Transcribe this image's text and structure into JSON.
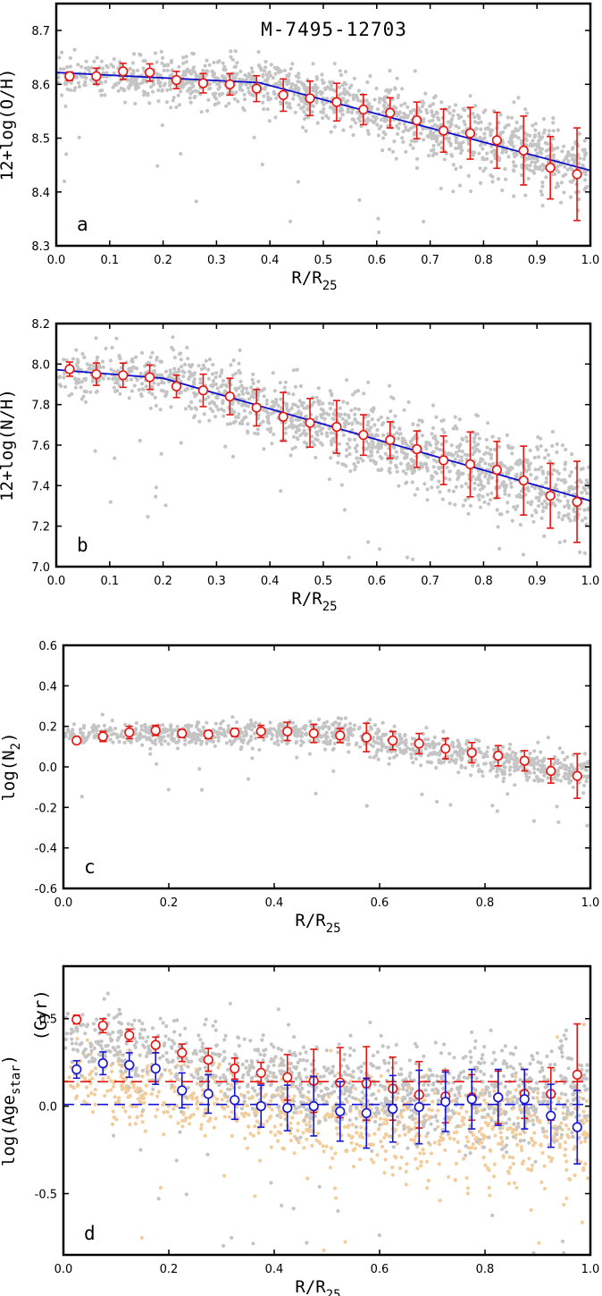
{
  "figure_title": "M-7495-12703",
  "colors": {
    "scatter": "#c4c4c4",
    "scatter_young": "#f2cc9a",
    "binned_red": "#e8140f",
    "fit_blue": "#1010cc",
    "binned_blue": "#1414d6",
    "frame": "#000000"
  },
  "chart_data": [
    {
      "id": "a",
      "type": "scatter",
      "panel_label": "a",
      "title": "M-7495-12703",
      "xlabel": "R/R25",
      "xlabel_main": "R/R",
      "xlabel_sub": "25",
      "ylabel": "12+log(O/H)",
      "xlim": [
        0.0,
        1.0
      ],
      "ylim": [
        8.3,
        8.75
      ],
      "xticks": [
        "0.0",
        "0.1",
        "0.2",
        "0.3",
        "0.4",
        "0.5",
        "0.6",
        "0.7",
        "0.8",
        "0.9",
        "1.0"
      ],
      "yticks": [
        "8.3",
        "8.4",
        "8.5",
        "8.6",
        "8.7"
      ],
      "grid": false,
      "scatter_cloud": {
        "trend_x": [
          0.0,
          0.4,
          1.0
        ],
        "trend_y": [
          8.62,
          8.6,
          8.45
        ],
        "spread": 0.035,
        "n": 1400
      },
      "fit_line": {
        "x": [
          0.0,
          0.38,
          1.0
        ],
        "y": [
          8.622,
          8.603,
          8.44
        ]
      },
      "binned": [
        {
          "x": 0.025,
          "y": 8.615,
          "err": 0.008
        },
        {
          "x": 0.075,
          "y": 8.615,
          "err": 0.015
        },
        {
          "x": 0.125,
          "y": 8.624,
          "err": 0.015
        },
        {
          "x": 0.175,
          "y": 8.622,
          "err": 0.016
        },
        {
          "x": 0.225,
          "y": 8.608,
          "err": 0.016
        },
        {
          "x": 0.275,
          "y": 8.602,
          "err": 0.018
        },
        {
          "x": 0.325,
          "y": 8.6,
          "err": 0.02
        },
        {
          "x": 0.375,
          "y": 8.592,
          "err": 0.024
        },
        {
          "x": 0.425,
          "y": 8.58,
          "err": 0.03
        },
        {
          "x": 0.475,
          "y": 8.574,
          "err": 0.032
        },
        {
          "x": 0.525,
          "y": 8.567,
          "err": 0.035
        },
        {
          "x": 0.575,
          "y": 8.553,
          "err": 0.028
        },
        {
          "x": 0.625,
          "y": 8.547,
          "err": 0.028
        },
        {
          "x": 0.675,
          "y": 8.533,
          "err": 0.034
        },
        {
          "x": 0.725,
          "y": 8.514,
          "err": 0.04
        },
        {
          "x": 0.775,
          "y": 8.509,
          "err": 0.048
        },
        {
          "x": 0.825,
          "y": 8.496,
          "err": 0.052
        },
        {
          "x": 0.875,
          "y": 8.477,
          "err": 0.064
        },
        {
          "x": 0.925,
          "y": 8.445,
          "err": 0.058
        },
        {
          "x": 0.975,
          "y": 8.433,
          "err": 0.086
        }
      ]
    },
    {
      "id": "b",
      "type": "scatter",
      "panel_label": "b",
      "xlabel": "R/R25",
      "xlabel_main": "R/R",
      "xlabel_sub": "25",
      "ylabel": "12+log(N/H)",
      "xlim": [
        0.0,
        1.0
      ],
      "ylim": [
        7.0,
        8.2
      ],
      "xticks": [
        "0.0",
        "0.1",
        "0.2",
        "0.3",
        "0.4",
        "0.5",
        "0.6",
        "0.7",
        "0.8",
        "0.9",
        "1.0"
      ],
      "yticks": [
        "7.0",
        "7.2",
        "7.4",
        "7.6",
        "7.8",
        "8.0",
        "8.2"
      ],
      "grid": false,
      "scatter_cloud": {
        "trend_x": [
          0.0,
          0.2,
          1.0
        ],
        "trend_y": [
          7.97,
          7.93,
          7.33
        ],
        "spread": 0.12,
        "n": 1400
      },
      "fit_line": {
        "x": [
          0.0,
          0.2,
          1.0
        ],
        "y": [
          7.972,
          7.93,
          7.325
        ]
      },
      "binned": [
        {
          "x": 0.025,
          "y": 7.975,
          "err": 0.035
        },
        {
          "x": 0.075,
          "y": 7.95,
          "err": 0.055
        },
        {
          "x": 0.125,
          "y": 7.945,
          "err": 0.06
        },
        {
          "x": 0.175,
          "y": 7.935,
          "err": 0.06
        },
        {
          "x": 0.225,
          "y": 7.89,
          "err": 0.055
        },
        {
          "x": 0.275,
          "y": 7.87,
          "err": 0.08
        },
        {
          "x": 0.325,
          "y": 7.84,
          "err": 0.09
        },
        {
          "x": 0.375,
          "y": 7.785,
          "err": 0.09
        },
        {
          "x": 0.425,
          "y": 7.74,
          "err": 0.12
        },
        {
          "x": 0.475,
          "y": 7.71,
          "err": 0.12
        },
        {
          "x": 0.525,
          "y": 7.69,
          "err": 0.13
        },
        {
          "x": 0.575,
          "y": 7.65,
          "err": 0.1
        },
        {
          "x": 0.625,
          "y": 7.625,
          "err": 0.09
        },
        {
          "x": 0.675,
          "y": 7.58,
          "err": 0.09
        },
        {
          "x": 0.725,
          "y": 7.525,
          "err": 0.12
        },
        {
          "x": 0.775,
          "y": 7.505,
          "err": 0.16
        },
        {
          "x": 0.825,
          "y": 7.478,
          "err": 0.14
        },
        {
          "x": 0.875,
          "y": 7.425,
          "err": 0.17
        },
        {
          "x": 0.925,
          "y": 7.35,
          "err": 0.16
        },
        {
          "x": 0.975,
          "y": 7.32,
          "err": 0.2
        }
      ]
    },
    {
      "id": "c",
      "type": "scatter",
      "panel_label": "c",
      "xlabel": "R/R25",
      "xlabel_main": "R/R",
      "xlabel_sub": "25",
      "ylabel": "log(N2)",
      "ylabel_main": "log(N",
      "ylabel_sub": "2",
      "ylabel_close": ")",
      "xlim": [
        0.0,
        1.0
      ],
      "ylim": [
        -0.6,
        0.6
      ],
      "xticks": [
        "0.0",
        "0.2",
        "0.4",
        "0.6",
        "0.8",
        "1.0"
      ],
      "yticks": [
        "-0.6",
        "-0.4",
        "-0.2",
        "0.0",
        "0.2",
        "0.4",
        "0.6"
      ],
      "grid": false,
      "scatter_cloud": {
        "trend_x": [
          0.1,
          0.5,
          1.0
        ],
        "trend_y": [
          0.16,
          0.17,
          -0.05
        ],
        "spread": 0.05,
        "n": 1100
      },
      "binned": [
        {
          "x": 0.025,
          "y": 0.13,
          "err": 0.015
        },
        {
          "x": 0.075,
          "y": 0.15,
          "err": 0.025
        },
        {
          "x": 0.125,
          "y": 0.17,
          "err": 0.03
        },
        {
          "x": 0.175,
          "y": 0.18,
          "err": 0.025
        },
        {
          "x": 0.225,
          "y": 0.165,
          "err": 0.02
        },
        {
          "x": 0.275,
          "y": 0.16,
          "err": 0.02
        },
        {
          "x": 0.325,
          "y": 0.17,
          "err": 0.02
        },
        {
          "x": 0.375,
          "y": 0.175,
          "err": 0.03
        },
        {
          "x": 0.425,
          "y": 0.175,
          "err": 0.045
        },
        {
          "x": 0.475,
          "y": 0.165,
          "err": 0.045
        },
        {
          "x": 0.525,
          "y": 0.155,
          "err": 0.035
        },
        {
          "x": 0.575,
          "y": 0.145,
          "err": 0.07
        },
        {
          "x": 0.625,
          "y": 0.13,
          "err": 0.045
        },
        {
          "x": 0.675,
          "y": 0.115,
          "err": 0.05
        },
        {
          "x": 0.725,
          "y": 0.09,
          "err": 0.05
        },
        {
          "x": 0.775,
          "y": 0.07,
          "err": 0.05
        },
        {
          "x": 0.825,
          "y": 0.055,
          "err": 0.05
        },
        {
          "x": 0.875,
          "y": 0.03,
          "err": 0.05
        },
        {
          "x": 0.925,
          "y": -0.02,
          "err": 0.06
        },
        {
          "x": 0.975,
          "y": -0.045,
          "err": 0.11
        }
      ]
    },
    {
      "id": "d",
      "type": "scatter",
      "panel_label": "d",
      "xlabel": "R/R25",
      "xlabel_main": "R/R",
      "xlabel_sub": "25",
      "ylabel": "log(Agestar) (Gyr)",
      "ylabel_main": "log(Age",
      "ylabel_sub": "star",
      "ylabel_close": ")",
      "ylabel_unit": "(Gyr)",
      "xlim": [
        0.0,
        1.0
      ],
      "ylim": [
        -0.85,
        0.8
      ],
      "xticks": [
        "0.0",
        "0.2",
        "0.4",
        "0.6",
        "0.8",
        "1.0"
      ],
      "yticks": [
        "-0.5",
        "0.0",
        "0.5"
      ],
      "grid": false,
      "hlines": [
        {
          "y": 0.14,
          "color": "red"
        },
        {
          "y": 0.01,
          "color": "blue"
        }
      ],
      "scatter_old": {
        "trend_x": [
          0.0,
          0.5,
          1.0
        ],
        "trend_y": [
          0.4,
          0.1,
          0.05
        ],
        "spread": 0.17,
        "n": 1200
      },
      "scatter_young": {
        "trend_x": [
          0.0,
          0.5,
          1.0
        ],
        "trend_y": [
          0.15,
          -0.1,
          -0.15
        ],
        "spread": 0.17,
        "n": 900
      },
      "series": [
        {
          "color": "red",
          "points": [
            {
              "x": 0.025,
              "y": 0.495,
              "err": 0.025
            },
            {
              "x": 0.075,
              "y": 0.46,
              "err": 0.04
            },
            {
              "x": 0.125,
              "y": 0.405,
              "err": 0.035
            },
            {
              "x": 0.175,
              "y": 0.35,
              "err": 0.045
            },
            {
              "x": 0.225,
              "y": 0.305,
              "err": 0.05
            },
            {
              "x": 0.275,
              "y": 0.265,
              "err": 0.065
            },
            {
              "x": 0.325,
              "y": 0.215,
              "err": 0.06
            },
            {
              "x": 0.375,
              "y": 0.19,
              "err": 0.06
            },
            {
              "x": 0.425,
              "y": 0.165,
              "err": 0.13
            },
            {
              "x": 0.475,
              "y": 0.145,
              "err": 0.18
            },
            {
              "x": 0.525,
              "y": 0.135,
              "err": 0.2
            },
            {
              "x": 0.575,
              "y": 0.13,
              "err": 0.21
            },
            {
              "x": 0.625,
              "y": 0.1,
              "err": 0.18
            },
            {
              "x": 0.675,
              "y": 0.065,
              "err": 0.19
            },
            {
              "x": 0.725,
              "y": 0.055,
              "err": 0.15
            },
            {
              "x": 0.775,
              "y": 0.05,
              "err": 0.13
            },
            {
              "x": 0.825,
              "y": 0.05,
              "err": 0.15
            },
            {
              "x": 0.875,
              "y": 0.07,
              "err": 0.14
            },
            {
              "x": 0.925,
              "y": 0.07,
              "err": 0.15
            },
            {
              "x": 0.975,
              "y": 0.18,
              "err": 0.29
            }
          ]
        },
        {
          "color": "blue",
          "points": [
            {
              "x": 0.025,
              "y": 0.21,
              "err": 0.05
            },
            {
              "x": 0.075,
              "y": 0.245,
              "err": 0.065
            },
            {
              "x": 0.125,
              "y": 0.235,
              "err": 0.07
            },
            {
              "x": 0.175,
              "y": 0.215,
              "err": 0.09
            },
            {
              "x": 0.225,
              "y": 0.09,
              "err": 0.1
            },
            {
              "x": 0.275,
              "y": 0.07,
              "err": 0.11
            },
            {
              "x": 0.325,
              "y": 0.035,
              "err": 0.11
            },
            {
              "x": 0.375,
              "y": 0.0,
              "err": 0.12
            },
            {
              "x": 0.425,
              "y": -0.01,
              "err": 0.13
            },
            {
              "x": 0.475,
              "y": 0.0,
              "err": 0.17
            },
            {
              "x": 0.525,
              "y": -0.03,
              "err": 0.17
            },
            {
              "x": 0.575,
              "y": -0.04,
              "err": 0.2
            },
            {
              "x": 0.625,
              "y": -0.015,
              "err": 0.19
            },
            {
              "x": 0.675,
              "y": -0.005,
              "err": 0.21
            },
            {
              "x": 0.725,
              "y": 0.025,
              "err": 0.17
            },
            {
              "x": 0.775,
              "y": 0.04,
              "err": 0.17
            },
            {
              "x": 0.825,
              "y": 0.05,
              "err": 0.16
            },
            {
              "x": 0.875,
              "y": 0.04,
              "err": 0.17
            },
            {
              "x": 0.925,
              "y": -0.055,
              "err": 0.18
            },
            {
              "x": 0.975,
              "y": -0.12,
              "err": 0.21
            }
          ]
        }
      ]
    }
  ]
}
